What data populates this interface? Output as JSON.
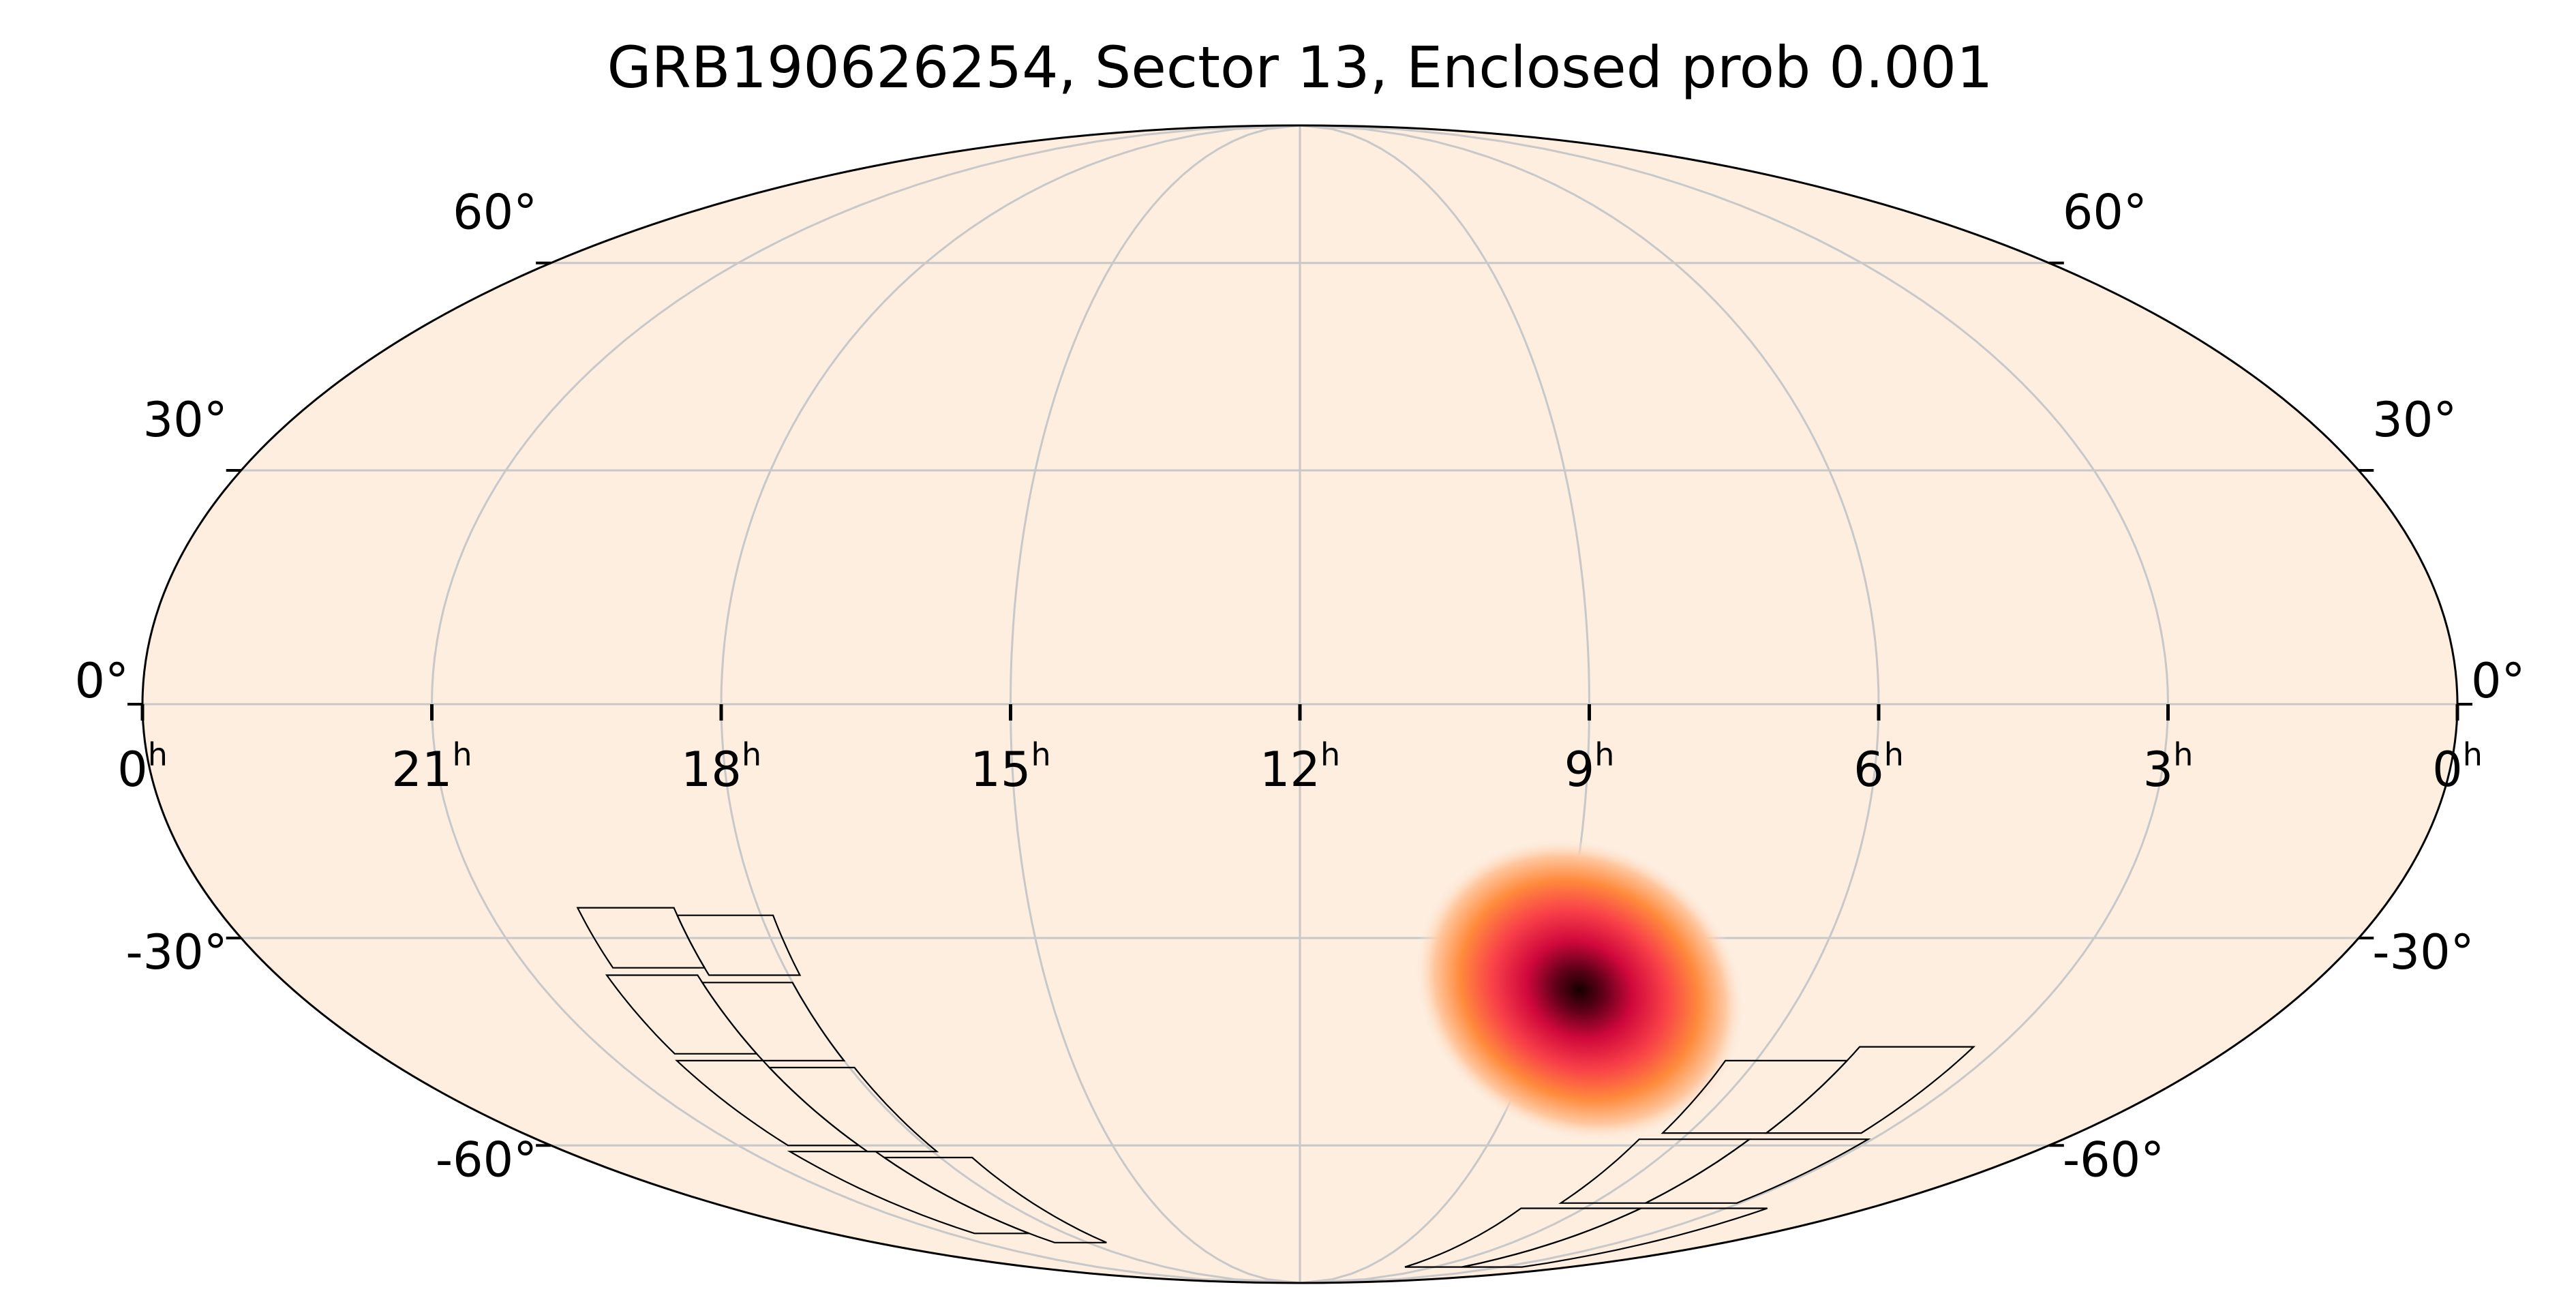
{
  "title": "GRB190626254, Sector 13, Enclosed prob 0.001",
  "projection": "mollweide",
  "longitude_direction": "east-left",
  "ra_labels": [
    {
      "value": "0",
      "unit": "h",
      "deg": 0,
      "edge": "left"
    },
    {
      "value": "21",
      "unit": "h",
      "deg": 315
    },
    {
      "value": "18",
      "unit": "h",
      "deg": 270
    },
    {
      "value": "15",
      "unit": "h",
      "deg": 225
    },
    {
      "value": "12",
      "unit": "h",
      "deg": 180
    },
    {
      "value": "9",
      "unit": "h",
      "deg": 135
    },
    {
      "value": "6",
      "unit": "h",
      "deg": 90
    },
    {
      "value": "3",
      "unit": "h",
      "deg": 45
    },
    {
      "value": "0",
      "unit": "h",
      "deg": 0,
      "edge": "right"
    }
  ],
  "dec_labels_left": [
    "60°",
    "30°",
    "0°",
    "-30°",
    "-60°"
  ],
  "dec_labels_right": [
    "60°",
    "30°",
    "0°",
    "-30°",
    "-60°"
  ],
  "dec_values": [
    60,
    30,
    0,
    -30,
    -60
  ],
  "grid": true,
  "colors": {
    "background": "#fdeee0",
    "grid": "#c8c8c8",
    "outline": "#000000",
    "heat_peak": "#1a0000",
    "heat_mid": "#c8003c",
    "heat_edge": "#ff8a3c"
  },
  "probability_blob": {
    "ra_deg": 130,
    "dec_deg": -37,
    "sigma_deg": 8
  },
  "tess_sector": {
    "sector": 13,
    "clusters": [
      {
        "center_ra_deg": 285,
        "center_dec_deg": -48
      },
      {
        "center_ra_deg": 75,
        "center_dec_deg": -55
      }
    ]
  }
}
